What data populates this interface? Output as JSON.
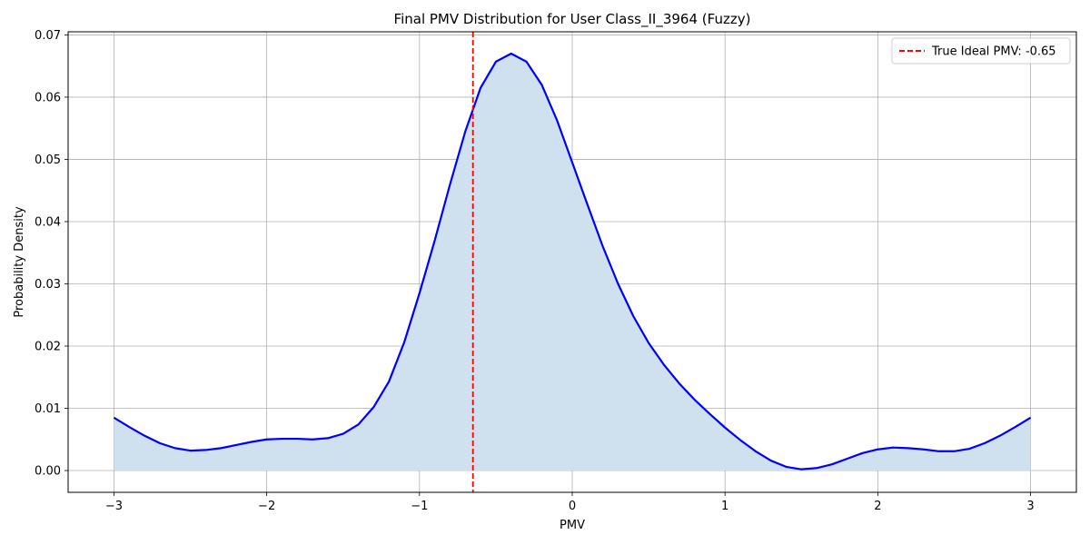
{
  "chart_data": {
    "type": "line",
    "title": "Final PMV Distribution for User Class_II_3964 (Fuzzy)",
    "xlabel": "PMV",
    "ylabel": "Probability Density",
    "xlim": [
      -3.3,
      3.3
    ],
    "ylim": [
      -0.0035,
      0.0705
    ],
    "xticks": [
      -3,
      -2,
      -1,
      0,
      1,
      2,
      3
    ],
    "xtick_labels": [
      "−3",
      "−2",
      "−1",
      "0",
      "1",
      "2",
      "3"
    ],
    "yticks": [
      0.0,
      0.01,
      0.02,
      0.03,
      0.04,
      0.05,
      0.06,
      0.07
    ],
    "ytick_labels": [
      "0.00",
      "0.01",
      "0.02",
      "0.03",
      "0.04",
      "0.05",
      "0.06",
      "0.07"
    ],
    "grid": true,
    "legend_position": "top-right",
    "series": [
      {
        "color": "#0000ff",
        "fill_color": "#cfe0ef",
        "x": [
          -3.0,
          -2.9,
          -2.8,
          -2.7,
          -2.6,
          -2.5,
          -2.4,
          -2.3,
          -2.2,
          -2.1,
          -2.0,
          -1.9,
          -1.8,
          -1.7,
          -1.6,
          -1.5,
          -1.4,
          -1.3,
          -1.2,
          -1.1,
          -1.0,
          -0.9,
          -0.8,
          -0.7,
          -0.6,
          -0.5,
          -0.4,
          -0.3,
          -0.2,
          -0.1,
          0.0,
          0.1,
          0.2,
          0.3,
          0.4,
          0.5,
          0.6,
          0.7,
          0.8,
          0.9,
          1.0,
          1.1,
          1.2,
          1.3,
          1.4,
          1.5,
          1.6,
          1.7,
          1.8,
          1.9,
          2.0,
          2.1,
          2.2,
          2.3,
          2.4,
          2.5,
          2.6,
          2.7,
          2.8,
          2.9,
          3.0
        ],
        "y": [
          0.0085,
          0.007,
          0.0056,
          0.0044,
          0.0036,
          0.0032,
          0.0033,
          0.0036,
          0.0041,
          0.0046,
          0.005,
          0.0051,
          0.0051,
          0.005,
          0.0052,
          0.0059,
          0.0074,
          0.0102,
          0.0143,
          0.0206,
          0.0285,
          0.037,
          0.046,
          0.0545,
          0.0615,
          0.0657,
          0.067,
          0.0657,
          0.062,
          0.0563,
          0.0495,
          0.0427,
          0.036,
          0.03,
          0.0248,
          0.0205,
          0.017,
          0.014,
          0.0114,
          0.0091,
          0.0069,
          0.0049,
          0.0031,
          0.0016,
          0.0006,
          0.0002,
          0.0004,
          0.001,
          0.0019,
          0.0028,
          0.0034,
          0.0037,
          0.0036,
          0.0034,
          0.0031,
          0.0031,
          0.0035,
          0.0044,
          0.0056,
          0.007,
          0.0085
        ]
      }
    ],
    "reference_lines": [
      {
        "x": -0.65,
        "color": "#ff0000",
        "style": "dashed",
        "label": "True Ideal PMV: -0.65"
      }
    ]
  }
}
